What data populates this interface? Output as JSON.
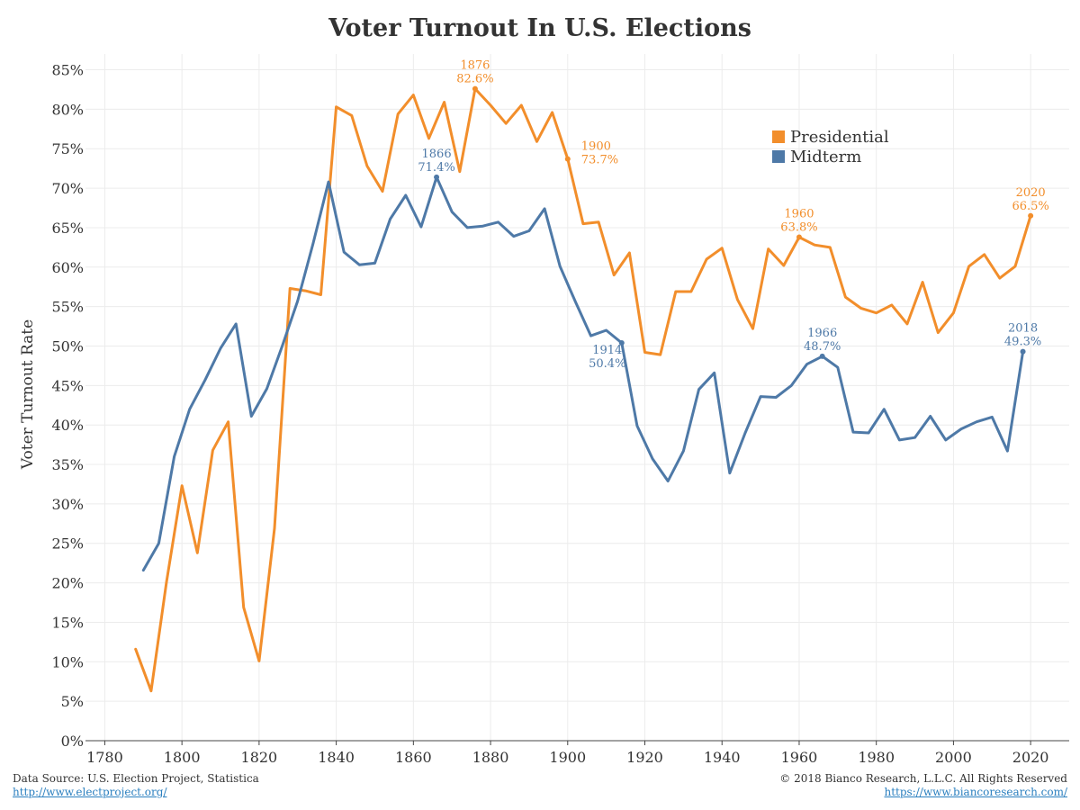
{
  "chart_data": {
    "type": "line",
    "title": "Voter Turnout In U.S. Elections",
    "xlabel": "",
    "ylabel": "Voter Turnout Rate",
    "xlim": [
      1775,
      2030
    ],
    "ylim": [
      0,
      87
    ],
    "x_ticks": [
      1780,
      1800,
      1820,
      1840,
      1860,
      1880,
      1900,
      1920,
      1940,
      1960,
      1980,
      2000,
      2020
    ],
    "y_ticks": [
      0,
      5,
      10,
      15,
      20,
      25,
      30,
      35,
      40,
      45,
      50,
      55,
      60,
      65,
      70,
      75,
      80,
      85
    ],
    "y_tick_labels": [
      "0%",
      "5%",
      "10%",
      "15%",
      "20%",
      "25%",
      "30%",
      "35%",
      "40%",
      "45%",
      "50%",
      "55%",
      "60%",
      "65%",
      "70%",
      "75%",
      "80%",
      "85%"
    ],
    "grid": true,
    "legend_position": "top-right",
    "series": [
      {
        "name": "Presidential",
        "color": "#f28e2b",
        "points": [
          [
            1788,
            11.6
          ],
          [
            1792,
            6.3
          ],
          [
            1796,
            20.1
          ],
          [
            1800,
            32.3
          ],
          [
            1804,
            23.8
          ],
          [
            1808,
            36.8
          ],
          [
            1812,
            40.4
          ],
          [
            1816,
            16.9
          ],
          [
            1820,
            10.1
          ],
          [
            1824,
            26.9
          ],
          [
            1828,
            57.3
          ],
          [
            1832,
            57.0
          ],
          [
            1836,
            56.5
          ],
          [
            1840,
            80.3
          ],
          [
            1844,
            79.2
          ],
          [
            1848,
            72.8
          ],
          [
            1852,
            69.6
          ],
          [
            1856,
            79.4
          ],
          [
            1860,
            81.8
          ],
          [
            1864,
            76.3
          ],
          [
            1868,
            80.9
          ],
          [
            1872,
            72.1
          ],
          [
            1876,
            82.6
          ],
          [
            1880,
            80.5
          ],
          [
            1884,
            78.2
          ],
          [
            1888,
            80.5
          ],
          [
            1892,
            75.9
          ],
          [
            1896,
            79.6
          ],
          [
            1900,
            73.7
          ],
          [
            1904,
            65.5
          ],
          [
            1908,
            65.7
          ],
          [
            1912,
            59.0
          ],
          [
            1916,
            61.8
          ],
          [
            1920,
            49.2
          ],
          [
            1924,
            48.9
          ],
          [
            1928,
            56.9
          ],
          [
            1932,
            56.9
          ],
          [
            1936,
            61.0
          ],
          [
            1940,
            62.4
          ],
          [
            1944,
            55.9
          ],
          [
            1948,
            52.2
          ],
          [
            1952,
            62.3
          ],
          [
            1956,
            60.2
          ],
          [
            1960,
            63.8
          ],
          [
            1964,
            62.8
          ],
          [
            1968,
            62.5
          ],
          [
            1972,
            56.2
          ],
          [
            1976,
            54.8
          ],
          [
            1980,
            54.2
          ],
          [
            1984,
            55.2
          ],
          [
            1988,
            52.8
          ],
          [
            1992,
            58.1
          ],
          [
            1996,
            51.7
          ],
          [
            2000,
            54.2
          ],
          [
            2004,
            60.1
          ],
          [
            2008,
            61.6
          ],
          [
            2012,
            58.6
          ],
          [
            2016,
            60.1
          ],
          [
            2020,
            66.5
          ]
        ]
      },
      {
        "name": "Midterm",
        "color": "#4e79a7",
        "points": [
          [
            1790,
            21.6
          ],
          [
            1794,
            25.0
          ],
          [
            1798,
            36.0
          ],
          [
            1802,
            42.0
          ],
          [
            1806,
            45.7
          ],
          [
            1810,
            49.7
          ],
          [
            1814,
            52.8
          ],
          [
            1818,
            41.1
          ],
          [
            1822,
            44.6
          ],
          [
            1826,
            50.0
          ],
          [
            1830,
            55.7
          ],
          [
            1834,
            63.0
          ],
          [
            1838,
            70.8
          ],
          [
            1842,
            61.9
          ],
          [
            1846,
            60.3
          ],
          [
            1850,
            60.5
          ],
          [
            1854,
            66.1
          ],
          [
            1858,
            69.1
          ],
          [
            1862,
            65.1
          ],
          [
            1866,
            71.4
          ],
          [
            1870,
            67.0
          ],
          [
            1874,
            65.0
          ],
          [
            1878,
            65.2
          ],
          [
            1882,
            65.7
          ],
          [
            1886,
            63.9
          ],
          [
            1890,
            64.6
          ],
          [
            1894,
            67.4
          ],
          [
            1898,
            60.1
          ],
          [
            1902,
            55.6
          ],
          [
            1906,
            51.3
          ],
          [
            1910,
            52.0
          ],
          [
            1914,
            50.4
          ],
          [
            1918,
            39.9
          ],
          [
            1922,
            35.7
          ],
          [
            1926,
            32.9
          ],
          [
            1930,
            36.7
          ],
          [
            1934,
            44.5
          ],
          [
            1938,
            46.6
          ],
          [
            1942,
            33.9
          ],
          [
            1946,
            39.0
          ],
          [
            1950,
            43.6
          ],
          [
            1954,
            43.5
          ],
          [
            1958,
            45.0
          ],
          [
            1962,
            47.7
          ],
          [
            1966,
            48.7
          ],
          [
            1970,
            47.3
          ],
          [
            1974,
            39.1
          ],
          [
            1978,
            39.0
          ],
          [
            1982,
            42.0
          ],
          [
            1986,
            38.1
          ],
          [
            1990,
            38.4
          ],
          [
            1994,
            41.1
          ],
          [
            1998,
            38.1
          ],
          [
            2002,
            39.5
          ],
          [
            2006,
            40.4
          ],
          [
            2010,
            41.0
          ],
          [
            2014,
            36.7
          ],
          [
            2018,
            49.3
          ]
        ]
      }
    ],
    "annotations": [
      {
        "series": "Presidential",
        "x": 1876,
        "y": 82.6,
        "year": "1876",
        "value": "82.6%",
        "placement": "above",
        "color": "#f28e2b"
      },
      {
        "series": "Presidential",
        "x": 1900,
        "y": 73.7,
        "year": "1900",
        "value": "73.7%",
        "placement": "right",
        "color": "#f28e2b"
      },
      {
        "series": "Presidential",
        "x": 1960,
        "y": 63.8,
        "year": "1960",
        "value": "63.8%",
        "placement": "above",
        "color": "#f28e2b"
      },
      {
        "series": "Presidential",
        "x": 2020,
        "y": 66.5,
        "year": "2020",
        "value": "66.5%",
        "placement": "above",
        "color": "#f28e2b"
      },
      {
        "series": "Midterm",
        "x": 1866,
        "y": 71.4,
        "year": "1866",
        "value": "71.4%",
        "placement": "above",
        "color": "#4e79a7"
      },
      {
        "series": "Midterm",
        "x": 1914,
        "y": 50.4,
        "year": "1914",
        "value": "50.4%",
        "placement": "below-left",
        "color": "#4e79a7"
      },
      {
        "series": "Midterm",
        "x": 1966,
        "y": 48.7,
        "year": "1966",
        "value": "48.7%",
        "placement": "above",
        "color": "#4e79a7"
      },
      {
        "series": "Midterm",
        "x": 2018,
        "y": 49.3,
        "year": "2018",
        "value": "49.3%",
        "placement": "above",
        "color": "#4e79a7"
      }
    ]
  },
  "footer": {
    "source_text": "Data Source: U.S. Election Project, Statistica",
    "source_link": "http://www.electproject.org/",
    "copyright": "© 2018 Bianco Research, L.L.C. All Rights Reserved",
    "copyright_link": "https://www.biancoresearch.com/"
  }
}
